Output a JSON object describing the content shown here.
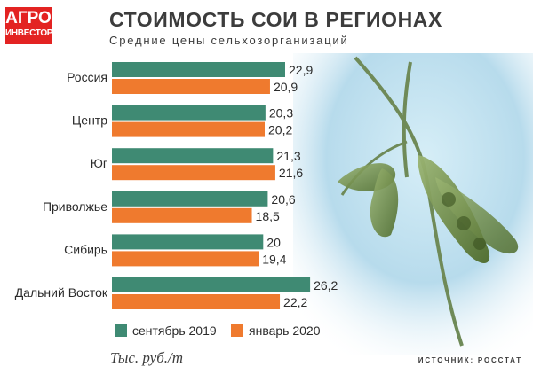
{
  "logo": {
    "line1": "АГРО",
    "line2": "ИНВЕСТОР"
  },
  "title": "СТОИМОСТЬ СОИ В РЕГИОНАХ",
  "subtitle": "Средние цены сельхозорганизаций",
  "units": "Тыс. руб./т",
  "source": "ИСТОЧНИК: РОССТАТ",
  "colors": {
    "series1": "#3f8a73",
    "series2": "#ef7a2e",
    "logo": "#e32322"
  },
  "background_image": "soybean-pods-illustration",
  "chart_data": {
    "type": "bar",
    "orientation": "horizontal",
    "categories": [
      "Россия",
      "Центр",
      "Юг",
      "Приволжье",
      "Сибирь",
      "Дальний Восток"
    ],
    "series": [
      {
        "name": "сентябрь 2019",
        "values": [
          22.9,
          20.3,
          21.3,
          20.6,
          20,
          26.2
        ],
        "labels": [
          "22,9",
          "20,3",
          "21,3",
          "20,6",
          "20",
          "26,2"
        ]
      },
      {
        "name": "январь 2020",
        "values": [
          20.9,
          20.2,
          21.6,
          18.5,
          19.4,
          22.2
        ],
        "labels": [
          "20,9",
          "20,2",
          "21,6",
          "18,5",
          "19,4",
          "22,2"
        ]
      }
    ],
    "title": "СТОИМОСТЬ СОИ В РЕГИОНАХ",
    "subtitle": "Средние цены сельхозорганизаций",
    "xlabel": "",
    "ylabel": "",
    "grid": false,
    "legend": "bottom"
  }
}
